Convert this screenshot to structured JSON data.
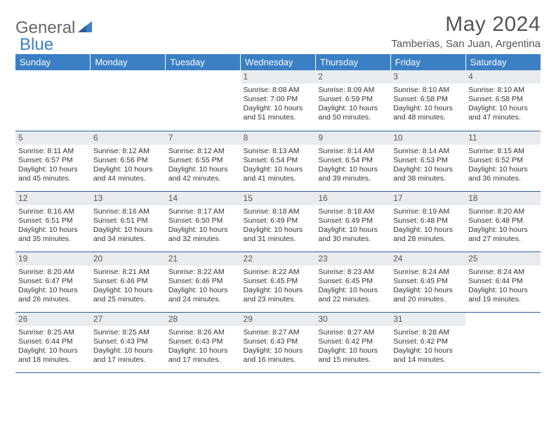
{
  "logo": {
    "text1": "General",
    "text2": "Blue"
  },
  "title": "May 2024",
  "location": "Tamberias, San Juan, Argentina",
  "style": {
    "header_bg": "#3b7fc4",
    "header_fg": "#ffffff",
    "daynum_bg": "#e9ecef",
    "border_color": "#2f5f9f",
    "body_font_size": 10.5,
    "title_font_size": 30
  },
  "weekdays": [
    "Sunday",
    "Monday",
    "Tuesday",
    "Wednesday",
    "Thursday",
    "Friday",
    "Saturday"
  ],
  "weeks": [
    [
      null,
      null,
      null,
      {
        "n": "1",
        "sr": "8:08 AM",
        "ss": "7:00 PM",
        "dl": "10 hours and 51 minutes."
      },
      {
        "n": "2",
        "sr": "8:09 AM",
        "ss": "6:59 PM",
        "dl": "10 hours and 50 minutes."
      },
      {
        "n": "3",
        "sr": "8:10 AM",
        "ss": "6:58 PM",
        "dl": "10 hours and 48 minutes."
      },
      {
        "n": "4",
        "sr": "8:10 AM",
        "ss": "6:58 PM",
        "dl": "10 hours and 47 minutes."
      }
    ],
    [
      {
        "n": "5",
        "sr": "8:11 AM",
        "ss": "6:57 PM",
        "dl": "10 hours and 45 minutes."
      },
      {
        "n": "6",
        "sr": "8:12 AM",
        "ss": "6:56 PM",
        "dl": "10 hours and 44 minutes."
      },
      {
        "n": "7",
        "sr": "8:12 AM",
        "ss": "6:55 PM",
        "dl": "10 hours and 42 minutes."
      },
      {
        "n": "8",
        "sr": "8:13 AM",
        "ss": "6:54 PM",
        "dl": "10 hours and 41 minutes."
      },
      {
        "n": "9",
        "sr": "8:14 AM",
        "ss": "6:54 PM",
        "dl": "10 hours and 39 minutes."
      },
      {
        "n": "10",
        "sr": "8:14 AM",
        "ss": "6:53 PM",
        "dl": "10 hours and 38 minutes."
      },
      {
        "n": "11",
        "sr": "8:15 AM",
        "ss": "6:52 PM",
        "dl": "10 hours and 36 minutes."
      }
    ],
    [
      {
        "n": "12",
        "sr": "8:16 AM",
        "ss": "6:51 PM",
        "dl": "10 hours and 35 minutes."
      },
      {
        "n": "13",
        "sr": "8:16 AM",
        "ss": "6:51 PM",
        "dl": "10 hours and 34 minutes."
      },
      {
        "n": "14",
        "sr": "8:17 AM",
        "ss": "6:50 PM",
        "dl": "10 hours and 32 minutes."
      },
      {
        "n": "15",
        "sr": "8:18 AM",
        "ss": "6:49 PM",
        "dl": "10 hours and 31 minutes."
      },
      {
        "n": "16",
        "sr": "8:18 AM",
        "ss": "6:49 PM",
        "dl": "10 hours and 30 minutes."
      },
      {
        "n": "17",
        "sr": "8:19 AM",
        "ss": "6:48 PM",
        "dl": "10 hours and 28 minutes."
      },
      {
        "n": "18",
        "sr": "8:20 AM",
        "ss": "6:48 PM",
        "dl": "10 hours and 27 minutes."
      }
    ],
    [
      {
        "n": "19",
        "sr": "8:20 AM",
        "ss": "6:47 PM",
        "dl": "10 hours and 26 minutes."
      },
      {
        "n": "20",
        "sr": "8:21 AM",
        "ss": "6:46 PM",
        "dl": "10 hours and 25 minutes."
      },
      {
        "n": "21",
        "sr": "8:22 AM",
        "ss": "6:46 PM",
        "dl": "10 hours and 24 minutes."
      },
      {
        "n": "22",
        "sr": "8:22 AM",
        "ss": "6:45 PM",
        "dl": "10 hours and 23 minutes."
      },
      {
        "n": "23",
        "sr": "8:23 AM",
        "ss": "6:45 PM",
        "dl": "10 hours and 22 minutes."
      },
      {
        "n": "24",
        "sr": "8:24 AM",
        "ss": "6:45 PM",
        "dl": "10 hours and 20 minutes."
      },
      {
        "n": "25",
        "sr": "8:24 AM",
        "ss": "6:44 PM",
        "dl": "10 hours and 19 minutes."
      }
    ],
    [
      {
        "n": "26",
        "sr": "8:25 AM",
        "ss": "6:44 PM",
        "dl": "10 hours and 18 minutes."
      },
      {
        "n": "27",
        "sr": "8:25 AM",
        "ss": "6:43 PM",
        "dl": "10 hours and 17 minutes."
      },
      {
        "n": "28",
        "sr": "8:26 AM",
        "ss": "6:43 PM",
        "dl": "10 hours and 17 minutes."
      },
      {
        "n": "29",
        "sr": "8:27 AM",
        "ss": "6:43 PM",
        "dl": "10 hours and 16 minutes."
      },
      {
        "n": "30",
        "sr": "8:27 AM",
        "ss": "6:42 PM",
        "dl": "10 hours and 15 minutes."
      },
      {
        "n": "31",
        "sr": "8:28 AM",
        "ss": "6:42 PM",
        "dl": "10 hours and 14 minutes."
      },
      null
    ]
  ],
  "labels": {
    "sunrise": "Sunrise:",
    "sunset": "Sunset:",
    "daylight": "Daylight:"
  }
}
